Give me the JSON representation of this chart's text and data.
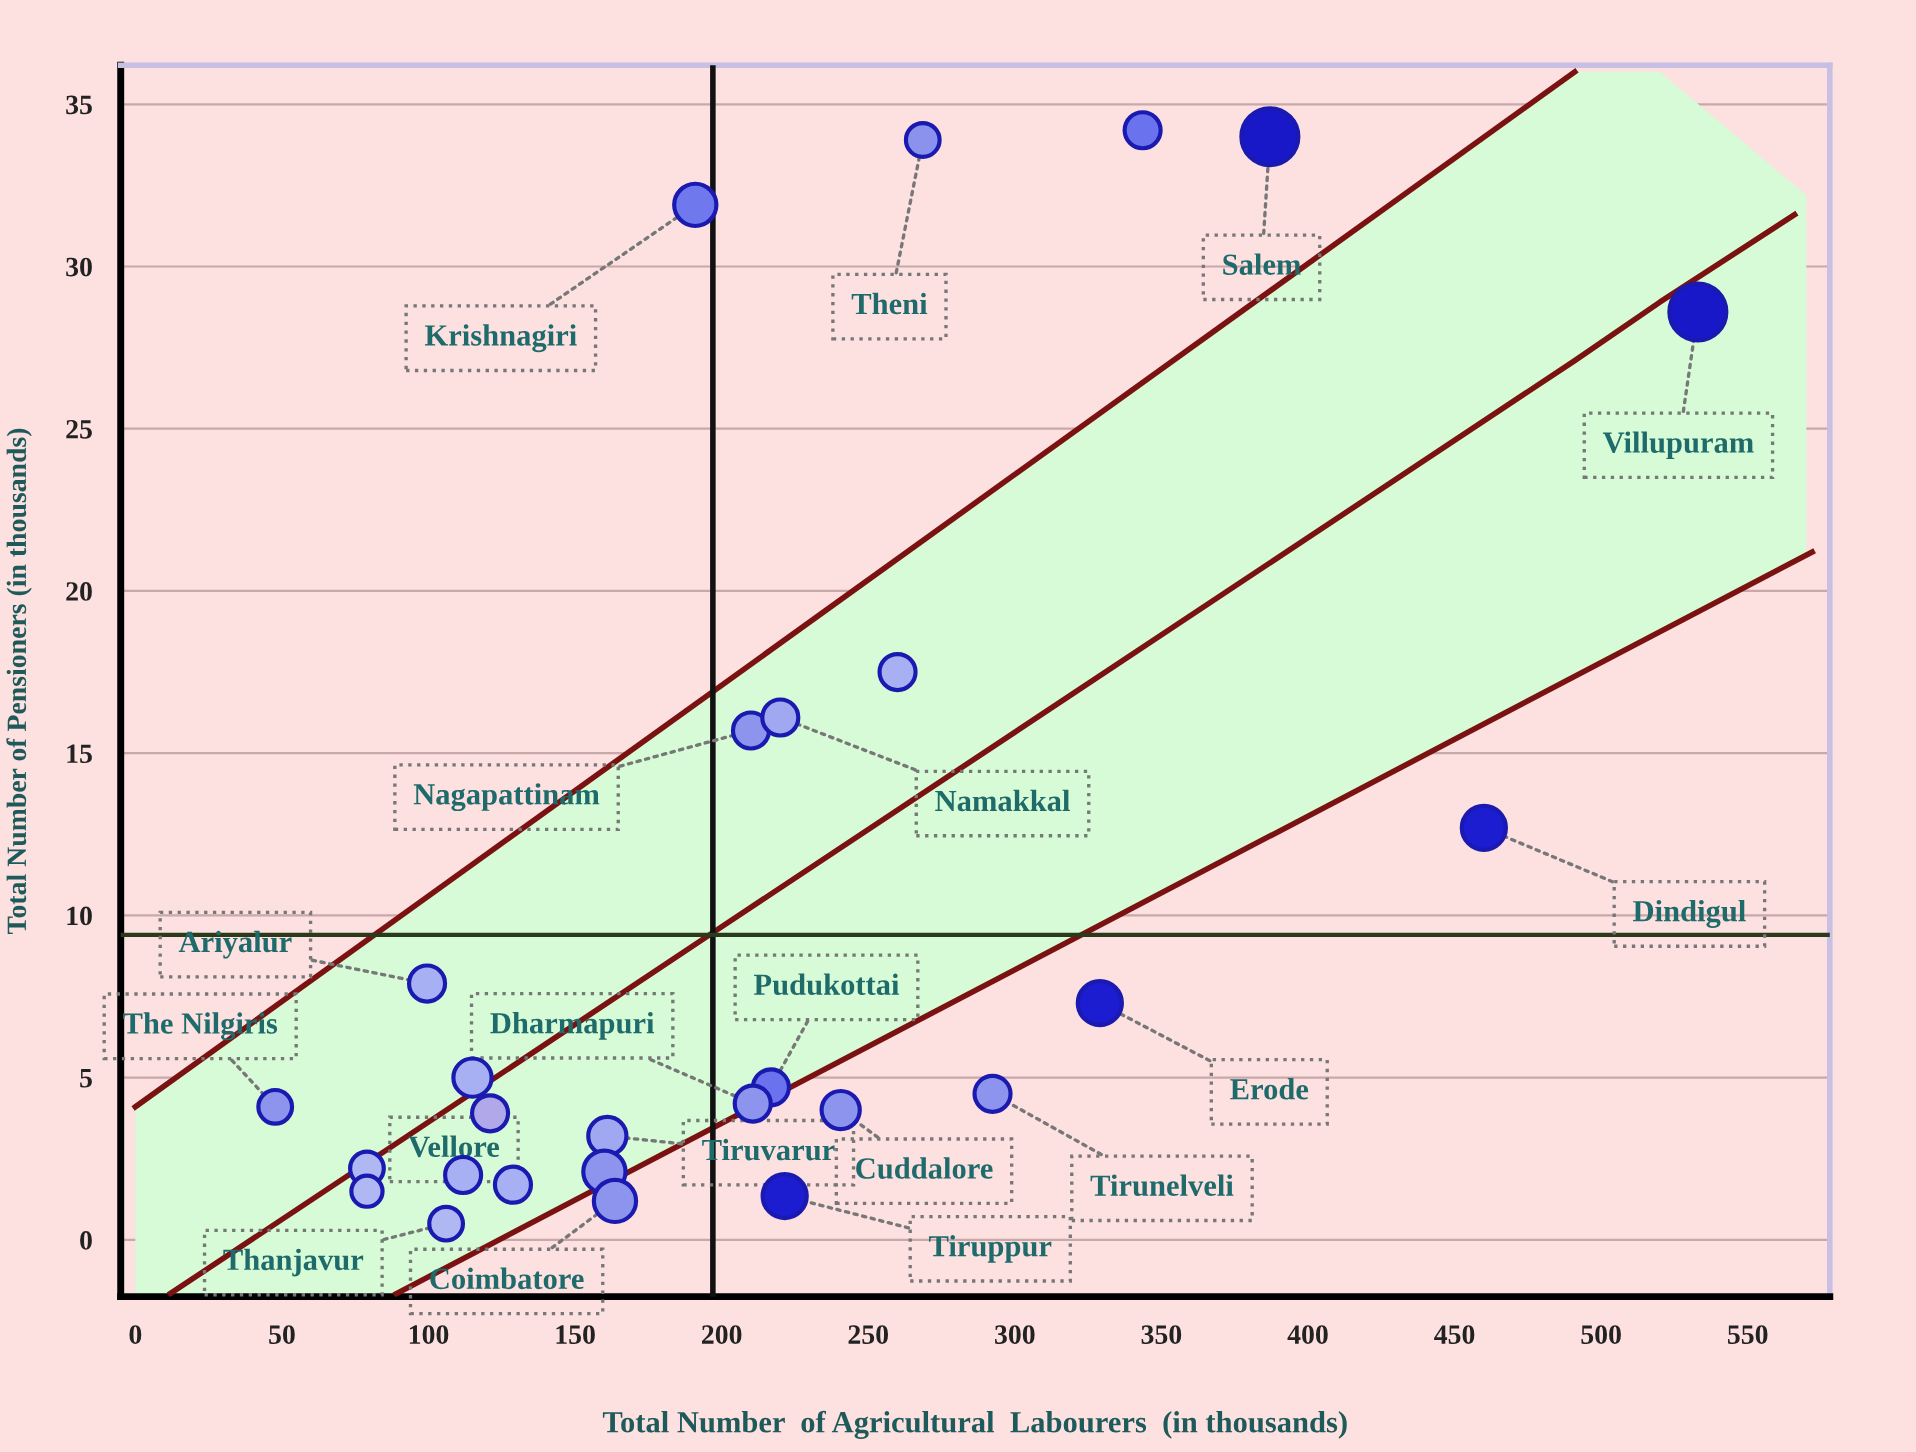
{
  "chart_data": {
    "type": "bubble",
    "xlabel": "Total Number  of Agricultural  Labourers  (in thousands)",
    "ylabel": "Total Number of Pensioners (in thousands)",
    "xlim": [
      -5,
      578
    ],
    "ylim": [
      -1.75,
      36.2
    ],
    "xticks": [
      0,
      50,
      100,
      150,
      200,
      250,
      300,
      350,
      400,
      450,
      500,
      550
    ],
    "yticks": [
      0,
      5,
      10,
      15,
      20,
      25,
      30,
      35
    ],
    "grid": "y",
    "ref_lines": [
      {
        "axis": "x",
        "value": 197,
        "label": null,
        "color": "#111111"
      },
      {
        "axis": "y",
        "value": 9.4,
        "label": null,
        "color": "#2a3a1a"
      }
    ],
    "series": [
      {
        "type": "line",
        "color": "#7a1212",
        "x": [
          0,
          491
        ],
        "values": [
          4.1,
          36
        ]
      },
      {
        "type": "line",
        "color": "#7a1212",
        "x": [
          0,
          12,
          89,
          200,
          491,
          520,
          566,
          570
        ],
        "values": [
          null,
          -1.65,
          2.97,
          9.65,
          27.1,
          28.9,
          31.6,
          null
        ],
        "lower": [
          -1.7,
          -1.7,
          -1.66,
          3.6,
          17.4,
          18.8,
          21.0,
          21.2
        ],
        "upper": [
          4.1,
          4.9,
          9.9,
          17.1,
          36,
          36,
          32.5,
          32.2
        ]
      },
      {
        "type": "line",
        "color": "#7a1212",
        "x": [
          89,
          572
        ],
        "values": [
          -1.66,
          21.2
        ]
      },
      {
        "marker": "circle",
        "x": [
          191,
          268.6,
          343.6,
          387,
          533,
          260,
          210,
          220,
          460,
          329,
          292.4,
          240.6,
          216.8,
          210.6,
          221.5,
          99.5,
          47.7,
          115,
          121,
          79,
          79,
          111.8,
          128.8,
          106,
          161,
          160,
          163.6
        ],
        "values": [
          31.9,
          33.9,
          34.2,
          34.0,
          28.6,
          17.5,
          15.7,
          16.1,
          12.7,
          7.3,
          4.5,
          4.0,
          4.7,
          4.2,
          1.35,
          7.9,
          4.1,
          5.0,
          3.9,
          2.2,
          1.5,
          2.0,
          1.7,
          0.5,
          3.2,
          2.1,
          1.2
        ],
        "sizes": [
          0.55,
          0.35,
          0.4,
          1,
          1,
          0.4,
          0.4,
          0.4,
          0.6,
          0.6,
          0.4,
          0.45,
          0.4,
          0.4,
          0.6,
          0.4,
          0.35,
          0.45,
          0.4,
          0.35,
          0.3,
          0.4,
          0.4,
          0.35,
          0.45,
          0.55,
          0.55
        ],
        "colors": [
          "#7078ee",
          "#8a92ee",
          "#6a72ee",
          "#1818c8",
          "#1818c8",
          "#a8b0f4",
          "#8c94ee",
          "#a0a8f2",
          "#1c1cd0",
          "#1c1cd0",
          "#8c94ee",
          "#8c94ee",
          "#6a72ee",
          "#8c94ee",
          "#1c1cd0",
          "#a8b0f4",
          "#8c94ee",
          "#a8b0f4",
          "#b0a8e8",
          "#b0b8f4",
          "#b0b8f4",
          "#a8b0f4",
          "#a8b0f4",
          "#b0b8f4",
          "#a0a8f2",
          "#8c94ee",
          "#8c94ee"
        ]
      }
    ],
    "annotations": [
      {
        "text": "Krishnagiri",
        "x": 191,
        "y": 31.9
      },
      {
        "text": "Theni",
        "x": 268.6,
        "y": 33.9
      },
      {
        "text": "Salem",
        "x": 387,
        "y": 34.0
      },
      {
        "text": "Villupuram",
        "x": 533,
        "y": 28.6
      },
      {
        "text": "Nagapattinam",
        "x": 210,
        "y": 15.7
      },
      {
        "text": "Namakkal",
        "x": 220,
        "y": 16.1
      },
      {
        "text": "Dindigul",
        "x": 460,
        "y": 12.7
      },
      {
        "text": "Erode",
        "x": 329,
        "y": 7.3
      },
      {
        "text": "Tirunelveli",
        "x": 292.4,
        "y": 4.5
      },
      {
        "text": "Cuddalore",
        "x": 240.6,
        "y": 4.0
      },
      {
        "text": "Pudukottai",
        "x": 216.8,
        "y": 4.7
      },
      {
        "text": "Dharmapuri",
        "x": 210.6,
        "y": 4.2
      },
      {
        "text": "Tiruvarur",
        "x": 161,
        "y": 3.2
      },
      {
        "text": "Tiruppur",
        "x": 221.5,
        "y": 1.35
      },
      {
        "text": "Ariyalur",
        "x": 99.5,
        "y": 7.9
      },
      {
        "text": "The Nilgiris",
        "x": 47.7,
        "y": 4.1
      },
      {
        "text": "Vellore",
        "x": 121,
        "y": 3.9
      },
      {
        "text": "Thanjavur",
        "x": 106,
        "y": 0.5
      },
      {
        "text": "Coimbatore",
        "x": 163.6,
        "y": 1.2
      }
    ]
  }
}
